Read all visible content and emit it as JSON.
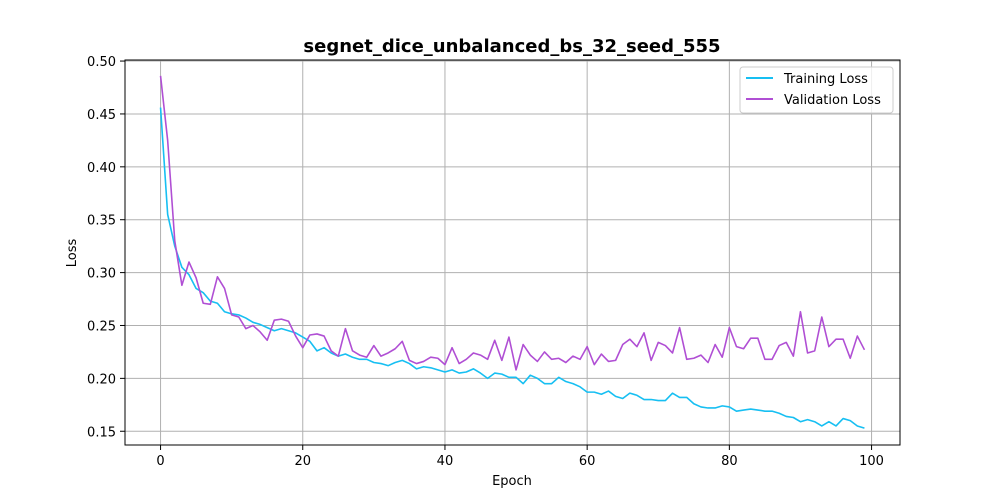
{
  "chart_data": {
    "type": "line",
    "title": "segnet_dice_unbalanced_bs_32_seed_555",
    "xlabel": "Epoch",
    "ylabel": "Loss",
    "xlim": [
      -5,
      104
    ],
    "ylim": [
      0.137,
      0.501
    ],
    "xticks": [
      0,
      20,
      40,
      60,
      80,
      100
    ],
    "yticks": [
      0.15,
      0.2,
      0.25,
      0.3,
      0.35,
      0.4,
      0.45,
      0.5
    ],
    "xtick_labels": [
      "0",
      "20",
      "40",
      "60",
      "80",
      "100"
    ],
    "ytick_labels": [
      "0.15",
      "0.20",
      "0.25",
      "0.30",
      "0.35",
      "0.40",
      "0.45",
      "0.50"
    ],
    "grid": true,
    "legend_position": "top-right",
    "series": [
      {
        "name": "Training Loss",
        "color": "#17bff2",
        "values": [
          0.456,
          0.355,
          0.325,
          0.305,
          0.298,
          0.285,
          0.281,
          0.273,
          0.271,
          0.263,
          0.261,
          0.26,
          0.257,
          0.253,
          0.251,
          0.248,
          0.245,
          0.247,
          0.245,
          0.243,
          0.239,
          0.235,
          0.226,
          0.229,
          0.224,
          0.221,
          0.223,
          0.22,
          0.218,
          0.218,
          0.215,
          0.214,
          0.212,
          0.215,
          0.217,
          0.214,
          0.209,
          0.211,
          0.21,
          0.208,
          0.206,
          0.208,
          0.205,
          0.206,
          0.209,
          0.205,
          0.2,
          0.205,
          0.204,
          0.201,
          0.201,
          0.195,
          0.203,
          0.2,
          0.195,
          0.195,
          0.201,
          0.197,
          0.195,
          0.192,
          0.187,
          0.187,
          0.185,
          0.188,
          0.183,
          0.181,
          0.186,
          0.184,
          0.18,
          0.18,
          0.179,
          0.179,
          0.186,
          0.182,
          0.182,
          0.176,
          0.173,
          0.172,
          0.172,
          0.174,
          0.173,
          0.169,
          0.17,
          0.171,
          0.17,
          0.169,
          0.169,
          0.167,
          0.164,
          0.163,
          0.159,
          0.161,
          0.159,
          0.155,
          0.159,
          0.155,
          0.162,
          0.16,
          0.155,
          0.153
        ]
      },
      {
        "name": "Validation Loss",
        "color": "#b04fd4",
        "values": [
          0.486,
          0.425,
          0.33,
          0.288,
          0.31,
          0.295,
          0.271,
          0.27,
          0.296,
          0.285,
          0.26,
          0.258,
          0.247,
          0.25,
          0.244,
          0.236,
          0.255,
          0.256,
          0.254,
          0.24,
          0.229,
          0.241,
          0.242,
          0.24,
          0.226,
          0.221,
          0.247,
          0.226,
          0.222,
          0.22,
          0.231,
          0.221,
          0.224,
          0.228,
          0.235,
          0.217,
          0.214,
          0.216,
          0.22,
          0.219,
          0.213,
          0.229,
          0.214,
          0.218,
          0.224,
          0.222,
          0.218,
          0.236,
          0.217,
          0.239,
          0.208,
          0.232,
          0.222,
          0.216,
          0.225,
          0.218,
          0.219,
          0.215,
          0.221,
          0.218,
          0.23,
          0.213,
          0.223,
          0.216,
          0.217,
          0.232,
          0.237,
          0.23,
          0.243,
          0.217,
          0.234,
          0.231,
          0.224,
          0.248,
          0.218,
          0.219,
          0.222,
          0.215,
          0.232,
          0.22,
          0.248,
          0.23,
          0.228,
          0.238,
          0.238,
          0.218,
          0.218,
          0.231,
          0.234,
          0.221,
          0.263,
          0.224,
          0.226,
          0.258,
          0.23,
          0.237,
          0.237,
          0.219,
          0.24,
          0.227
        ]
      }
    ]
  }
}
